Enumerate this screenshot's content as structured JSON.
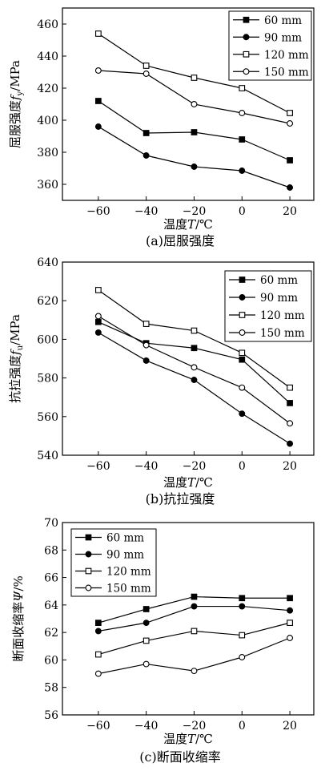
{
  "chart_data": [
    {
      "type": "line",
      "caption": "(a)屈服强度",
      "xlabel": "温度T/℃",
      "ylabel": "屈服强度f_y/MPa",
      "x": [
        -60,
        -40,
        -20,
        0,
        20
      ],
      "xlim": [
        -75,
        30
      ],
      "ylim": [
        350,
        470
      ],
      "yticks": [
        360,
        380,
        400,
        420,
        440,
        460
      ],
      "xticks": [
        -60,
        -40,
        -20,
        0,
        20
      ],
      "legend_position": "top-right",
      "series": [
        {
          "name": "60 mm",
          "marker": "filled-square",
          "values": [
            412,
            392,
            392.5,
            388,
            375
          ]
        },
        {
          "name": "90 mm",
          "marker": "filled-circle",
          "values": [
            396,
            378,
            371,
            368.5,
            358
          ]
        },
        {
          "name": "120 mm",
          "marker": "open-square",
          "values": [
            454,
            434,
            426.5,
            420,
            404.5
          ]
        },
        {
          "name": "150 mm",
          "marker": "open-circle",
          "values": [
            431,
            429,
            410,
            404.5,
            398
          ]
        }
      ]
    },
    {
      "type": "line",
      "caption": "(b)抗拉强度",
      "xlabel": "温度T/℃",
      "ylabel": "抗拉强度f_u/MPa",
      "x": [
        -60,
        -40,
        -20,
        0,
        20
      ],
      "xlim": [
        -75,
        30
      ],
      "ylim": [
        540,
        640
      ],
      "yticks": [
        540,
        560,
        580,
        600,
        620,
        640
      ],
      "xticks": [
        -60,
        -40,
        -20,
        0,
        20
      ],
      "legend_position": "top-right",
      "series": [
        {
          "name": "60 mm",
          "marker": "filled-square",
          "values": [
            609,
            598,
            595.5,
            589.5,
            567
          ]
        },
        {
          "name": "90 mm",
          "marker": "filled-circle",
          "values": [
            603.5,
            589,
            579,
            561.5,
            546
          ]
        },
        {
          "name": "120 mm",
          "marker": "open-square",
          "values": [
            625.5,
            608,
            604.5,
            593,
            575
          ]
        },
        {
          "name": "150 mm",
          "marker": "open-circle",
          "values": [
            612,
            597,
            585.5,
            575,
            556.5
          ]
        }
      ]
    },
    {
      "type": "line",
      "caption": "(c)断面收缩率",
      "xlabel": "温度T/℃",
      "ylabel": "断面收缩率Ψ/%",
      "x": [
        -60,
        -40,
        -20,
        0,
        20
      ],
      "xlim": [
        -75,
        30
      ],
      "ylim": [
        56,
        70
      ],
      "yticks": [
        56,
        58,
        60,
        62,
        64,
        66,
        68,
        70
      ],
      "xticks": [
        -60,
        -40,
        -20,
        0,
        20
      ],
      "legend_position": "top-left",
      "series": [
        {
          "name": "60 mm",
          "marker": "filled-square",
          "values": [
            62.7,
            63.7,
            64.6,
            64.5,
            64.5
          ]
        },
        {
          "name": "90 mm",
          "marker": "filled-circle",
          "values": [
            62.1,
            62.7,
            63.9,
            63.9,
            63.6
          ]
        },
        {
          "name": "120 mm",
          "marker": "open-square",
          "values": [
            60.4,
            61.4,
            62.1,
            61.8,
            62.7
          ]
        },
        {
          "name": "150 mm",
          "marker": "open-circle",
          "values": [
            59.0,
            59.7,
            59.2,
            60.2,
            61.6
          ]
        }
      ]
    }
  ]
}
